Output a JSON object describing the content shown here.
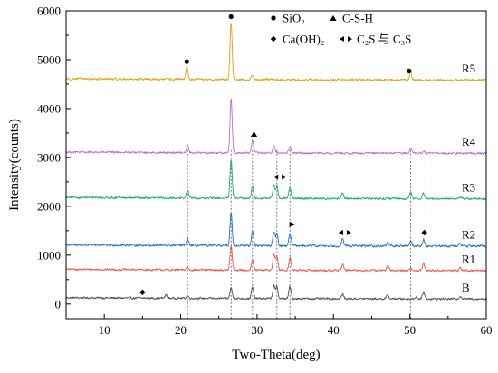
{
  "chart_data": {
    "type": "line",
    "title": "",
    "xlabel": "Two-Theta(deg)",
    "ylabel": "Intensity(counts)",
    "xlim": [
      5,
      60
    ],
    "ylim": [
      -300,
      6000
    ],
    "xticks": [
      10,
      20,
      30,
      40,
      50,
      60
    ],
    "yticks": [
      0,
      1000,
      2000,
      3000,
      4000,
      5000,
      6000
    ],
    "grid": false,
    "legend": {
      "placement": "top-right",
      "entries": [
        {
          "marker": "circle",
          "label": "SiO₂"
        },
        {
          "marker": "triangle",
          "label": "C-S-H"
        },
        {
          "marker": "diamond",
          "label": "Ca(OH)₂"
        },
        {
          "marker": "double-triangle",
          "label": "C₂S 与 C₃S"
        }
      ]
    },
    "series": [
      {
        "name": "B",
        "color": "#505050",
        "baseline": 100,
        "noise": 28,
        "peaks": [
          {
            "x": 18.1,
            "h": 70
          },
          {
            "x": 20.9,
            "h": 50
          },
          {
            "x": 26.6,
            "h": 220
          },
          {
            "x": 29.4,
            "h": 230
          },
          {
            "x": 32.2,
            "h": 270
          },
          {
            "x": 32.6,
            "h": 240
          },
          {
            "x": 34.3,
            "h": 250
          },
          {
            "x": 41.2,
            "h": 90
          },
          {
            "x": 47.1,
            "h": 70
          },
          {
            "x": 50.8,
            "h": 40
          },
          {
            "x": 51.8,
            "h": 140
          },
          {
            "x": 56.6,
            "h": 60
          }
        ]
      },
      {
        "name": "R1",
        "color": "#ef5350",
        "baseline": 680,
        "noise": 28,
        "peaks": [
          {
            "x": 20.9,
            "h": 60
          },
          {
            "x": 26.6,
            "h": 500
          },
          {
            "x": 29.4,
            "h": 200
          },
          {
            "x": 32.2,
            "h": 330
          },
          {
            "x": 32.6,
            "h": 280
          },
          {
            "x": 34.3,
            "h": 260
          },
          {
            "x": 41.2,
            "h": 120
          },
          {
            "x": 47.1,
            "h": 80
          },
          {
            "x": 50.1,
            "h": 40
          },
          {
            "x": 51.8,
            "h": 150
          },
          {
            "x": 56.6,
            "h": 60
          }
        ]
      },
      {
        "name": "R2",
        "color": "#1f6fd6",
        "baseline": 1180,
        "noise": 32,
        "peaks": [
          {
            "x": 20.9,
            "h": 150
          },
          {
            "x": 26.6,
            "h": 680
          },
          {
            "x": 29.4,
            "h": 300
          },
          {
            "x": 32.2,
            "h": 290
          },
          {
            "x": 32.6,
            "h": 250
          },
          {
            "x": 34.3,
            "h": 250
          },
          {
            "x": 41.2,
            "h": 140
          },
          {
            "x": 47.1,
            "h": 80
          },
          {
            "x": 50.1,
            "h": 110
          },
          {
            "x": 51.8,
            "h": 130
          },
          {
            "x": 56.6,
            "h": 50
          }
        ]
      },
      {
        "name": "R3",
        "color": "#1aaa6f",
        "baseline": 2150,
        "noise": 28,
        "peaks": [
          {
            "x": 20.9,
            "h": 170
          },
          {
            "x": 26.6,
            "h": 770
          },
          {
            "x": 29.4,
            "h": 250
          },
          {
            "x": 32.2,
            "h": 270
          },
          {
            "x": 32.6,
            "h": 250
          },
          {
            "x": 34.3,
            "h": 230
          },
          {
            "x": 41.2,
            "h": 100
          },
          {
            "x": 50.1,
            "h": 130
          },
          {
            "x": 51.8,
            "h": 110
          },
          {
            "x": 56.6,
            "h": 40
          }
        ]
      },
      {
        "name": "R4",
        "color": "#b46de2",
        "baseline": 3080,
        "noise": 28,
        "peaks": [
          {
            "x": 20.9,
            "h": 150
          },
          {
            "x": 26.6,
            "h": 1100
          },
          {
            "x": 29.4,
            "h": 250
          },
          {
            "x": 32.2,
            "h": 150
          },
          {
            "x": 34.3,
            "h": 120
          },
          {
            "x": 50.1,
            "h": 130
          },
          {
            "x": 51.8,
            "h": 60
          }
        ]
      },
      {
        "name": "R5",
        "color": "#e5a00d",
        "baseline": 4580,
        "noise": 30,
        "peaks": [
          {
            "x": 20.8,
            "h": 260
          },
          {
            "x": 26.6,
            "h": 1150
          },
          {
            "x": 29.4,
            "h": 100
          },
          {
            "x": 50.1,
            "h": 150
          }
        ]
      }
    ],
    "guide_lines_x": [
      20.9,
      26.6,
      29.4,
      32.6,
      34.3,
      50.1,
      52.1
    ],
    "annotations": [
      {
        "marker": "circle",
        "x": 20.8,
        "y": 4960
      },
      {
        "marker": "circle",
        "x": 26.6,
        "y": 5880
      },
      {
        "marker": "circle",
        "x": 49.9,
        "y": 4770
      },
      {
        "marker": "triangle",
        "x": 29.6,
        "y": 3480
      },
      {
        "marker": "double-triangle",
        "x": 33.0,
        "y": 2600
      },
      {
        "marker": "triangle-right",
        "x": 34.6,
        "y": 1630
      },
      {
        "marker": "double-triangle",
        "x": 41.5,
        "y": 1460
      },
      {
        "marker": "diamond",
        "x": 51.9,
        "y": 1460
      },
      {
        "marker": "diamond",
        "x": 15.0,
        "y": 240
      }
    ]
  }
}
